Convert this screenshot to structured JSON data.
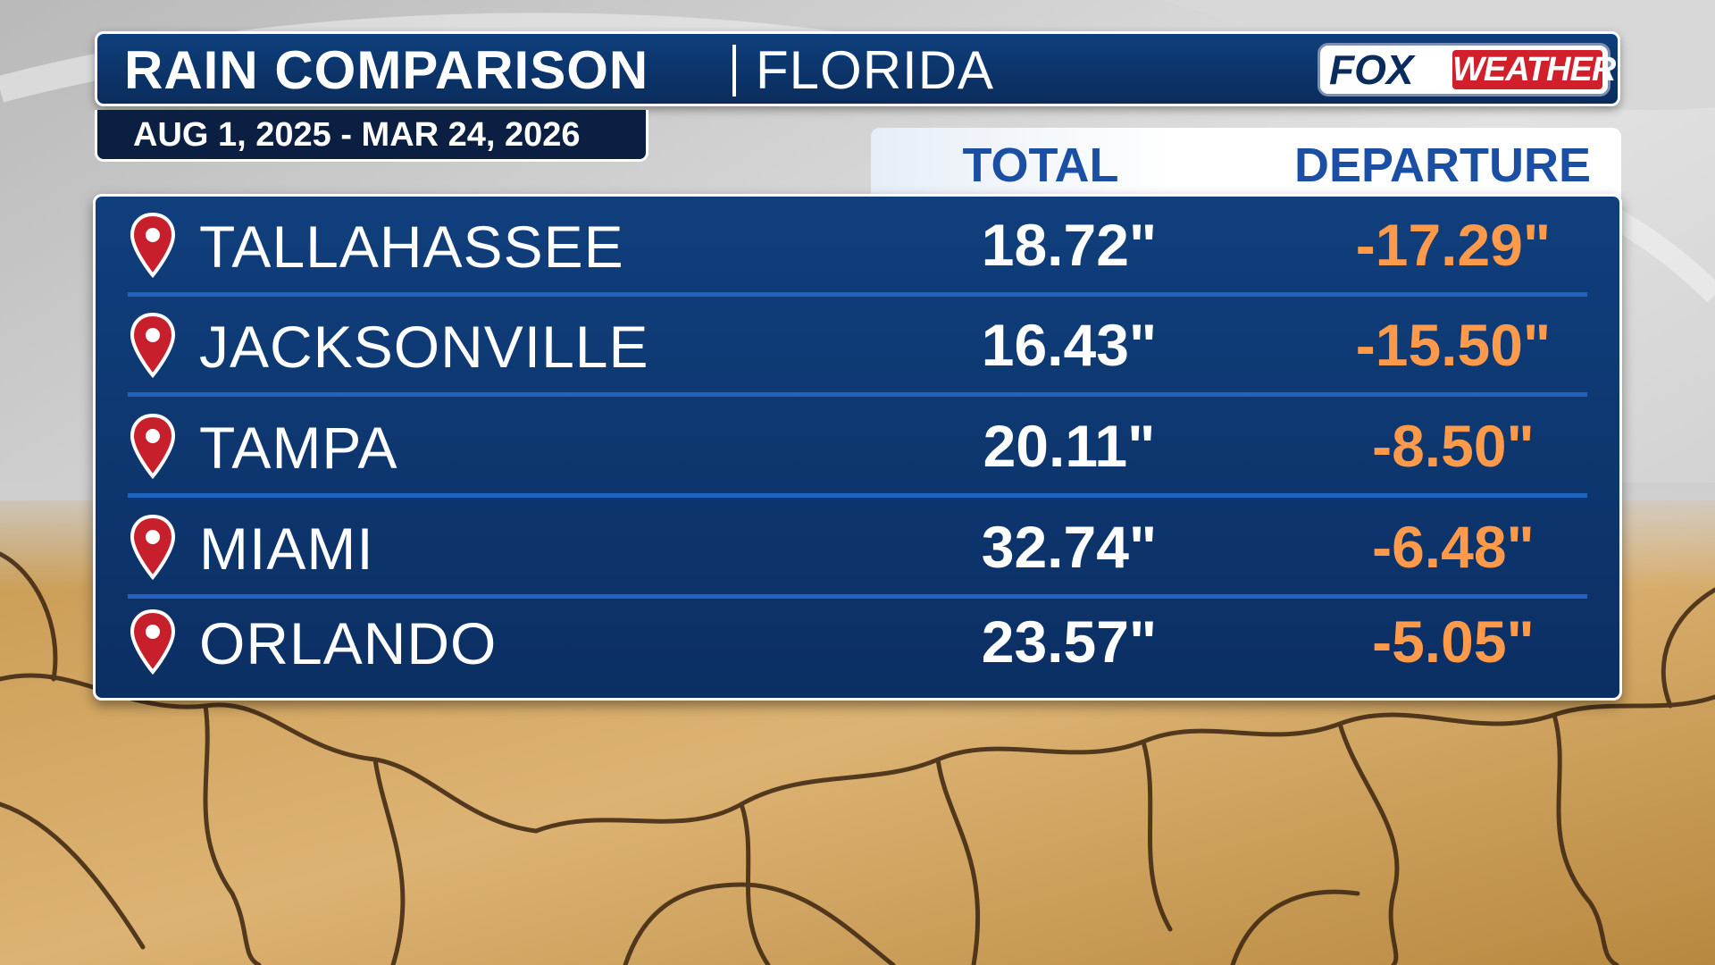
{
  "header": {
    "title": "RAIN COMPARISON",
    "region": "FLORIDA",
    "date_range": "AUG 1, 2025 - MAR 24, 2026"
  },
  "logo": {
    "fox": "FOX",
    "weather": "WEATHER"
  },
  "colors": {
    "panel": "#0b2f63",
    "accent_line": "#1f62c0",
    "header_text": "#1a4fa3",
    "departure_text": "#ff9a4a",
    "pin": "#c81f2d"
  },
  "icons": {
    "row_marker": "map-pin-icon"
  },
  "chart_data": {
    "type": "table",
    "title": "RAIN COMPARISON | FLORIDA",
    "subtitle": "AUG 1, 2025 - MAR 24, 2026",
    "columns": [
      "TOTAL",
      "DEPARTURE"
    ],
    "rows": [
      {
        "city": "TALLAHASSEE",
        "total": "18.72\"",
        "departure": "-17.29\"",
        "total_in": 18.72,
        "departure_in": -17.29
      },
      {
        "city": "JACKSONVILLE",
        "total": "16.43\"",
        "departure": "-15.50\"",
        "total_in": 16.43,
        "departure_in": -15.5
      },
      {
        "city": "TAMPA",
        "total": "20.11\"",
        "departure": "-8.50\"",
        "total_in": 20.11,
        "departure_in": -8.5
      },
      {
        "city": "MIAMI",
        "total": "32.74\"",
        "departure": "-6.48\"",
        "total_in": 32.74,
        "departure_in": -6.48
      },
      {
        "city": "ORLANDO",
        "total": "23.57\"",
        "departure": "-5.05\"",
        "total_in": 23.57,
        "departure_in": -5.05
      }
    ]
  }
}
